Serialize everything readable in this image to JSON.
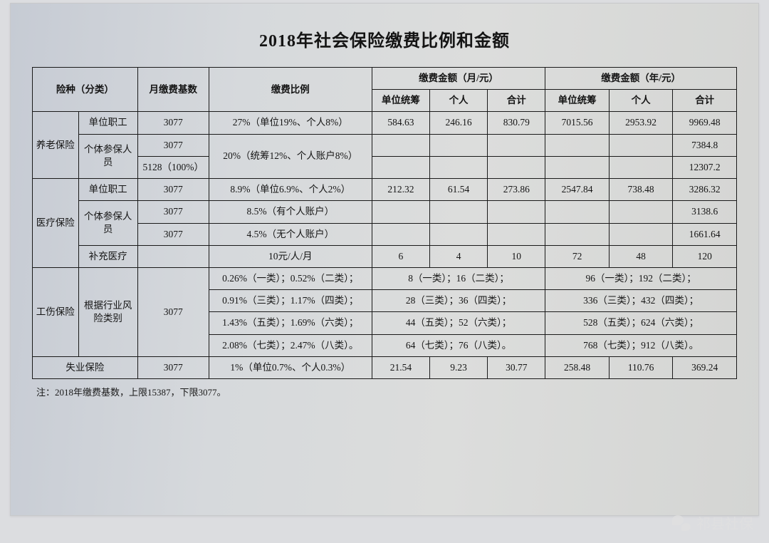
{
  "title": "2018年社会保险缴费比例和金额",
  "headers": {
    "category": "险种（分类）",
    "base": "月缴费基数",
    "rate": "缴费比例",
    "monthly": "缴费金额（月/元）",
    "yearly": "缴费金额（年/元）",
    "unit": "单位统筹",
    "personal": "个人",
    "total": "合计"
  },
  "pension": {
    "name": "养老保险",
    "rows": [
      {
        "sub": "单位职工",
        "base": "3077",
        "rate": "27%（单位19%、个人8%）",
        "m_unit": "584.63",
        "m_pers": "246.16",
        "m_tot": "830.79",
        "y_unit": "7015.56",
        "y_pers": "2953.92",
        "y_tot": "9969.48"
      },
      {
        "sub": "个体参保人员",
        "base": "3077",
        "rate": "20%（统筹12%、个人账户8%）",
        "m_unit": "",
        "m_pers": "",
        "m_tot": "",
        "y_unit": "",
        "y_pers": "",
        "y_tot": "7384.8"
      },
      {
        "base": "5128（100%）",
        "m_unit": "",
        "m_pers": "",
        "m_tot": "",
        "y_unit": "",
        "y_pers": "",
        "y_tot": "12307.2"
      }
    ]
  },
  "medical": {
    "name": "医疗保险",
    "rows": [
      {
        "sub": "单位职工",
        "base": "3077",
        "rate": "8.9%（单位6.9%、个人2%）",
        "m_unit": "212.32",
        "m_pers": "61.54",
        "m_tot": "273.86",
        "y_unit": "2547.84",
        "y_pers": "738.48",
        "y_tot": "3286.32"
      },
      {
        "sub": "个体参保人员",
        "base": "3077",
        "rate": "8.5%（有个人账户）",
        "m_unit": "",
        "m_pers": "",
        "m_tot": "",
        "y_unit": "",
        "y_pers": "",
        "y_tot": "3138.6"
      },
      {
        "base": "3077",
        "rate": "4.5%（无个人账户）",
        "m_unit": "",
        "m_pers": "",
        "m_tot": "",
        "y_unit": "",
        "y_pers": "",
        "y_tot": "1661.64"
      },
      {
        "sub": "补充医疗",
        "base": "",
        "rate": "10元/人/月",
        "m_unit": "6",
        "m_pers": "4",
        "m_tot": "10",
        "y_unit": "72",
        "y_pers": "48",
        "y_tot": "120"
      }
    ]
  },
  "injury": {
    "name": "工伤保险",
    "sub": "根据行业风险类别",
    "base": "3077",
    "rows": [
      {
        "rate": "0.26%（一类）；0.52%（二类）；",
        "month": "8（一类）；16（二类）；",
        "year": "96（一类）；192（二类）；"
      },
      {
        "rate": "0.91%（三类）；1.17%（四类）；",
        "month": "28（三类）；36（四类）；",
        "year": "336（三类）；432（四类）；"
      },
      {
        "rate": "1.43%（五类）；1.69%（六类）；",
        "month": "44（五类）；52（六类）；",
        "year": "528（五类）；624（六类）；"
      },
      {
        "rate": "2.08%（七类）；2.47%（八类）。",
        "month": "64（七类）；76（八类）。",
        "year": "768（七类）；912（八类）。"
      }
    ]
  },
  "unemployment": {
    "name": "失业保险",
    "base": "3077",
    "rate": "1%（单位0.7%、个人0.3%）",
    "m_unit": "21.54",
    "m_pers": "9.23",
    "m_tot": "30.77",
    "y_unit": "258.48",
    "y_pers": "110.76",
    "y_tot": "369.24"
  },
  "note": "注：2018年缴费基数，上限15387，下限3077。",
  "watermark": "祁县社保",
  "colors": {
    "paper_bg_from": "#c6cbd4",
    "paper_bg_to": "#d4d5d3",
    "border": "#1a1a1a",
    "text": "#151515",
    "watermark": "#e0e0e0"
  },
  "fonts": {
    "title_pt": 24,
    "body_pt": 13.5,
    "note_pt": 13,
    "watermark_pt": 20
  }
}
